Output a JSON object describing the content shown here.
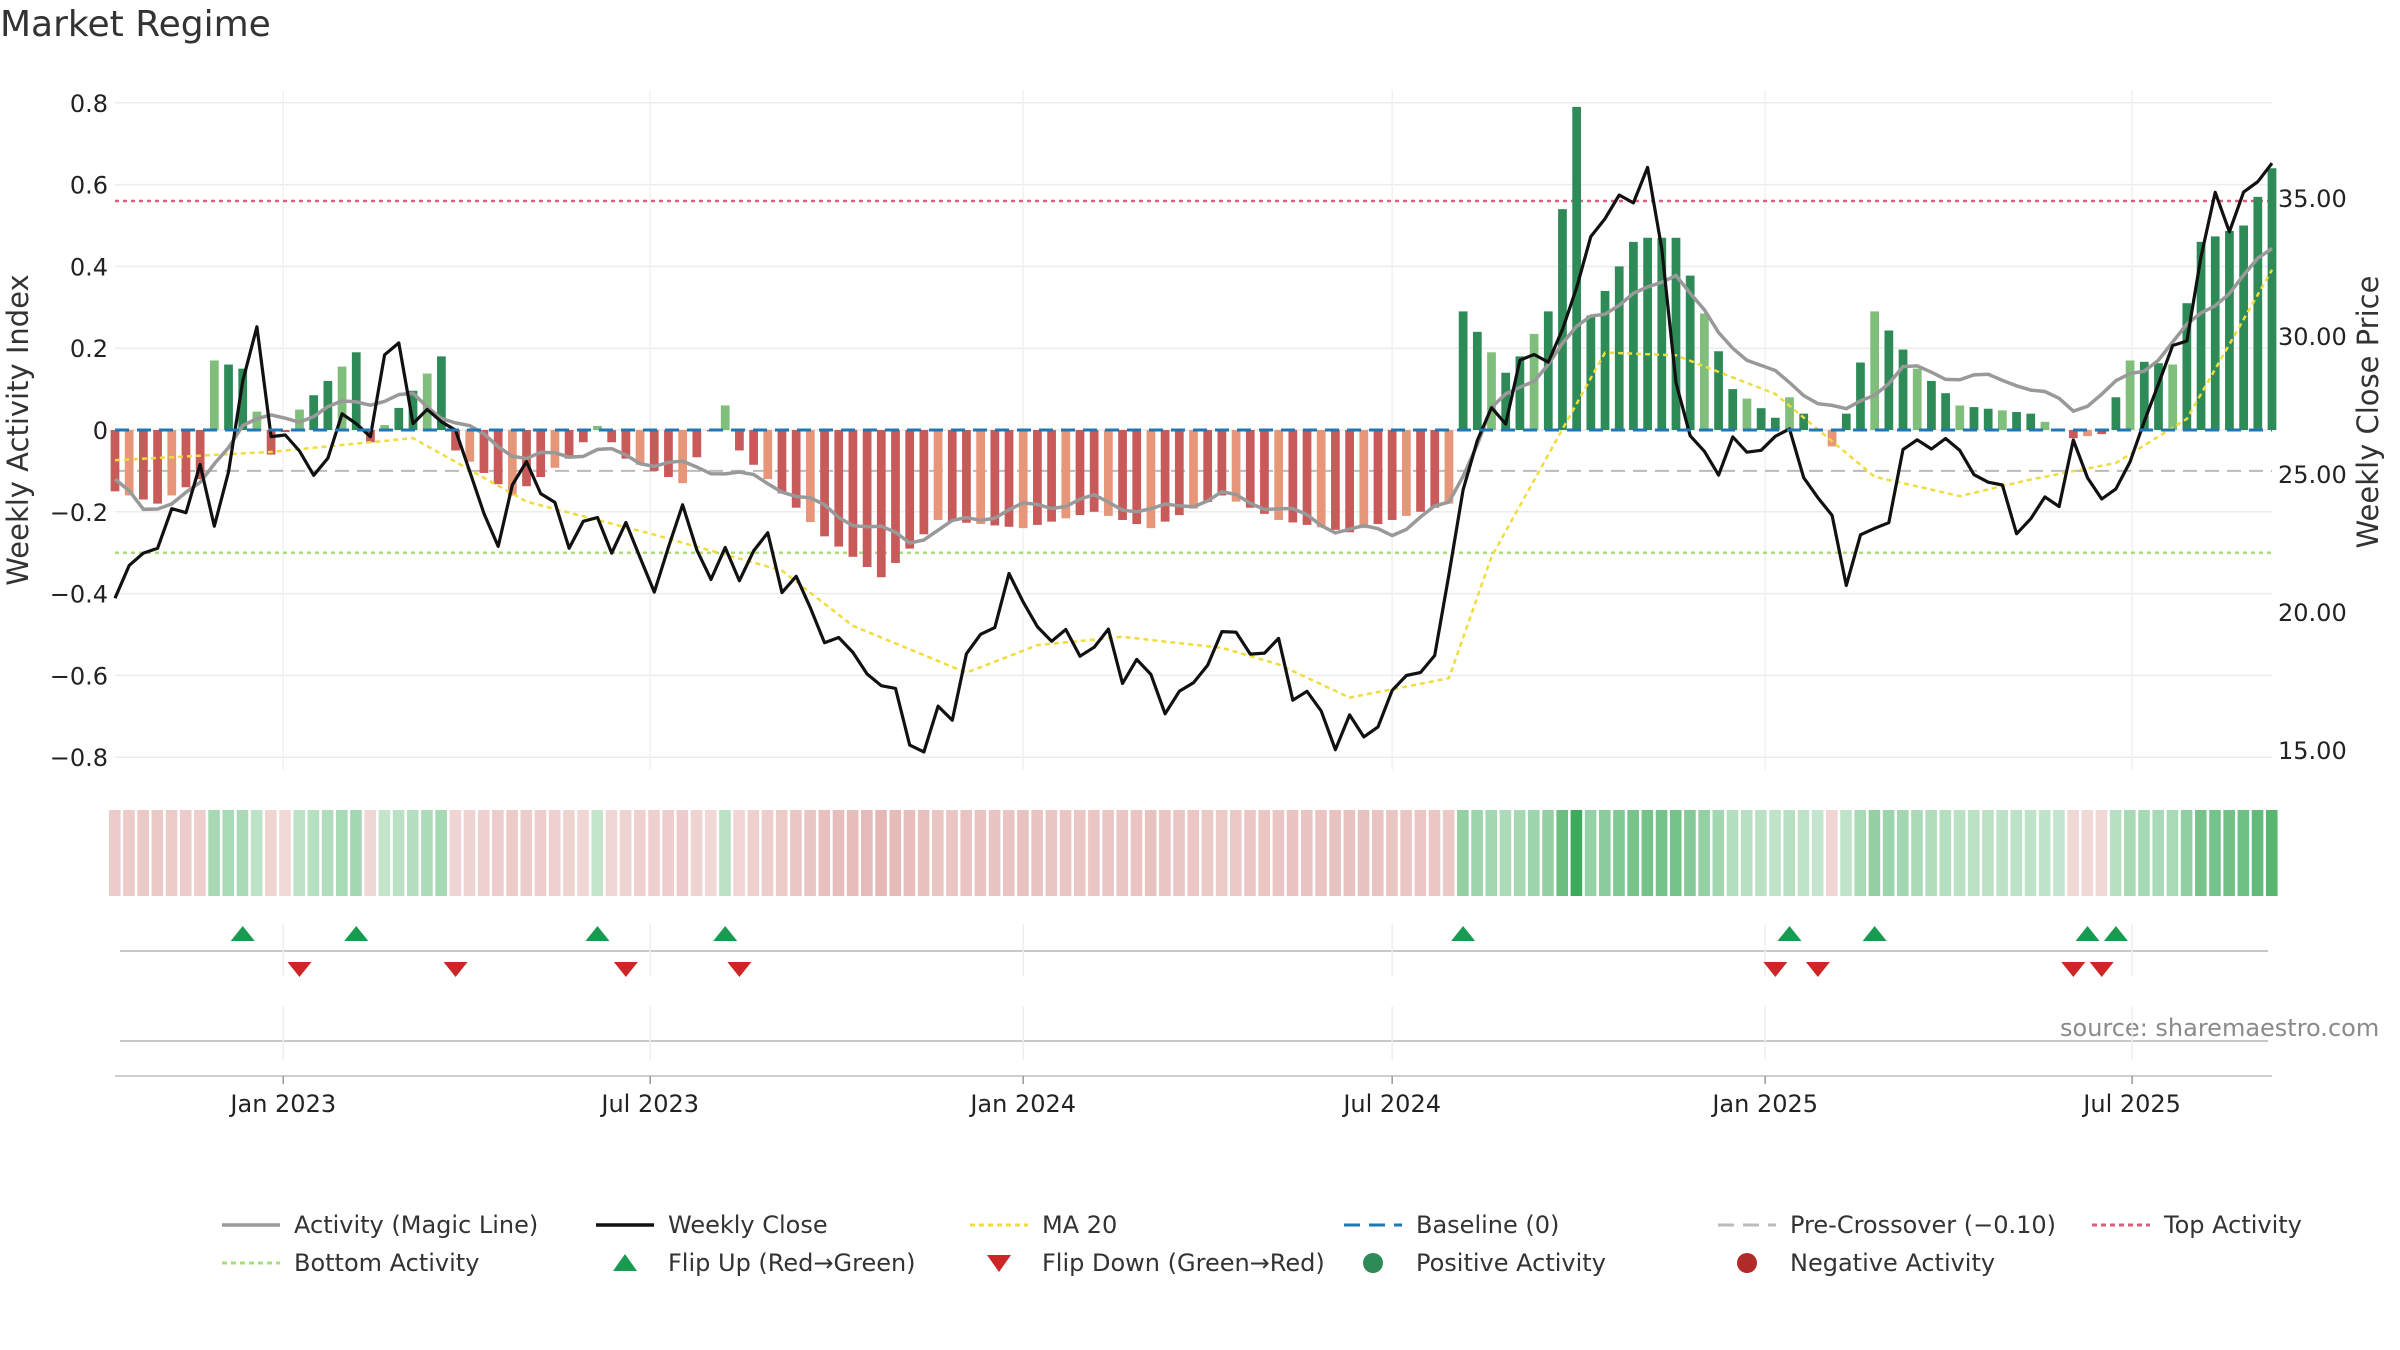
{
  "title": "Market Regime",
  "source": "source: sharemaestro.com",
  "colors": {
    "pos_strong": "#2e8b57",
    "pos_light": "#7fbf7b",
    "neg_strong": "#c85a5a",
    "neg_light": "#e8967a",
    "magic_line": "#999999",
    "weekly_close": "#111111",
    "ma20": "#f0dc3c",
    "baseline": "#1f77b4",
    "pre_crossover": "#bbbbbb",
    "top_activity": "#d9607a",
    "bottom_activity": "#a8dc78",
    "flip_up": "#1a9a50",
    "flip_down": "#cc2626"
  },
  "chart_data": {
    "type": "bar",
    "title": "Market Regime",
    "ylabel": "Weekly Activity Index",
    "y2label": "Weekly Close Price",
    "ylim": [
      -0.86,
      0.84
    ],
    "y2lim": [
      13.8,
      38.2
    ],
    "yticks": [
      "0.8",
      "0.6",
      "0.4",
      "0.2",
      "0",
      "−0.2",
      "−0.4",
      "−0.6",
      "−0.8"
    ],
    "yticks_values": [
      0.8,
      0.6,
      0.4,
      0.2,
      0,
      -0.2,
      -0.4,
      -0.6,
      -0.8
    ],
    "y2ticks": [
      "35.00",
      "30.00",
      "25.00",
      "20.00",
      "15.00"
    ],
    "y2ticks_values": [
      35,
      30,
      25,
      20,
      15
    ],
    "x_start": "2022-10-10",
    "x_end": "2025-09-08",
    "xticks": [
      "Jan 2023",
      "Jul 2023",
      "Jan 2024",
      "Jul 2024",
      "Jan 2025",
      "Jul 2025"
    ],
    "xticks_dates": [
      "2023-01-01",
      "2023-07-01",
      "2024-01-01",
      "2024-07-01",
      "2025-01-01",
      "2025-07-01"
    ],
    "grid": true,
    "legend_position": "bottom",
    "top_activity": 0.56,
    "bottom_activity": -0.3,
    "pre_crossover": -0.1,
    "baseline": 0,
    "activity_anchors": [
      [
        "2022-10-10",
        -0.15
      ],
      [
        "2022-10-31",
        -0.18
      ],
      [
        "2022-11-21",
        -0.12
      ],
      [
        "2022-11-28",
        0.17
      ],
      [
        "2022-12-12",
        0.15
      ],
      [
        "2022-12-26",
        -0.06
      ],
      [
        "2023-01-09",
        0.05
      ],
      [
        "2023-02-06",
        0.19
      ],
      [
        "2023-02-13",
        -0.03
      ],
      [
        "2023-03-20",
        0.18
      ],
      [
        "2023-03-27",
        -0.05
      ],
      [
        "2023-04-24",
        -0.16
      ],
      [
        "2023-05-22",
        -0.07
      ],
      [
        "2023-06-05",
        0.01
      ],
      [
        "2023-06-19",
        -0.07
      ],
      [
        "2023-07-17",
        -0.13
      ],
      [
        "2023-08-07",
        0.06
      ],
      [
        "2023-08-14",
        -0.05
      ],
      [
        "2023-09-25",
        -0.26
      ],
      [
        "2023-10-23",
        -0.36
      ],
      [
        "2023-11-20",
        -0.22
      ],
      [
        "2024-01-01",
        -0.24
      ],
      [
        "2024-02-05",
        -0.2
      ],
      [
        "2024-03-04",
        -0.24
      ],
      [
        "2024-04-08",
        -0.16
      ],
      [
        "2024-05-06",
        -0.22
      ],
      [
        "2024-06-10",
        -0.25
      ],
      [
        "2024-07-29",
        -0.18
      ],
      [
        "2024-08-05",
        0.29
      ],
      [
        "2024-08-26",
        0.14
      ],
      [
        "2024-09-02",
        0.18
      ],
      [
        "2024-09-16",
        0.29
      ],
      [
        "2024-09-30",
        0.79
      ],
      [
        "2024-10-07",
        0.28
      ],
      [
        "2024-10-28",
        0.46
      ],
      [
        "2024-11-04",
        0.47
      ],
      [
        "2024-11-18",
        0.47
      ],
      [
        "2024-12-16",
        0.1
      ],
      [
        "2025-01-06",
        0.03
      ],
      [
        "2025-01-13",
        0.08
      ],
      [
        "2025-02-03",
        -0.04
      ],
      [
        "2025-02-10",
        0.04
      ],
      [
        "2025-02-24",
        0.29
      ],
      [
        "2025-03-17",
        0.15
      ],
      [
        "2025-04-07",
        0.06
      ],
      [
        "2025-05-12",
        0.04
      ],
      [
        "2025-06-02",
        -0.02
      ],
      [
        "2025-06-16",
        -0.01
      ],
      [
        "2025-06-30",
        0.17
      ],
      [
        "2025-07-21",
        0.16
      ],
      [
        "2025-08-04",
        0.46
      ],
      [
        "2025-08-25",
        0.5
      ],
      [
        "2025-09-08",
        0.64
      ]
    ],
    "magic_anchors": [
      [
        "2022-10-10",
        -0.12
      ],
      [
        "2022-10-24",
        -0.2
      ],
      [
        "2022-11-21",
        -0.14
      ],
      [
        "2022-12-12",
        0.02
      ],
      [
        "2023-01-09",
        0.03
      ],
      [
        "2023-02-06",
        0.07
      ],
      [
        "2023-03-06",
        0.08
      ],
      [
        "2023-04-03",
        0.0
      ],
      [
        "2023-05-01",
        -0.07
      ],
      [
        "2023-06-05",
        -0.05
      ],
      [
        "2023-07-03",
        -0.08
      ],
      [
        "2023-08-07",
        -0.1
      ],
      [
        "2023-09-04",
        -0.14
      ],
      [
        "2023-10-02",
        -0.21
      ],
      [
        "2023-11-06",
        -0.27
      ],
      [
        "2023-12-04",
        -0.22
      ],
      [
        "2024-01-01",
        -0.19
      ],
      [
        "2024-02-05",
        -0.17
      ],
      [
        "2024-03-04",
        -0.2
      ],
      [
        "2024-04-08",
        -0.16
      ],
      [
        "2024-05-06",
        -0.19
      ],
      [
        "2024-06-03",
        -0.24
      ],
      [
        "2024-07-01",
        -0.25
      ],
      [
        "2024-07-29",
        -0.18
      ],
      [
        "2024-08-19",
        0.05
      ],
      [
        "2024-09-09",
        0.13
      ],
      [
        "2024-10-07",
        0.28
      ],
      [
        "2024-11-04",
        0.34
      ],
      [
        "2024-11-18",
        0.39
      ],
      [
        "2024-12-09",
        0.23
      ],
      [
        "2025-01-13",
        0.11
      ],
      [
        "2025-02-10",
        0.04
      ],
      [
        "2025-03-10",
        0.15
      ],
      [
        "2025-04-07",
        0.13
      ],
      [
        "2025-05-05",
        0.12
      ],
      [
        "2025-06-02",
        0.05
      ],
      [
        "2025-07-07",
        0.15
      ],
      [
        "2025-08-04",
        0.28
      ],
      [
        "2025-09-08",
        0.44
      ]
    ],
    "close_anchors": [
      [
        "2022-10-10",
        20.5
      ],
      [
        "2022-10-24",
        22.3
      ],
      [
        "2022-11-07",
        23.0
      ],
      [
        "2022-11-21",
        25.4
      ],
      [
        "2022-11-28",
        22.4
      ],
      [
        "2022-12-05",
        25.9
      ],
      [
        "2022-12-19",
        30.1
      ],
      [
        "2022-12-26",
        26.8
      ],
      [
        "2023-01-16",
        25.1
      ],
      [
        "2023-02-06",
        27.3
      ],
      [
        "2023-02-13",
        26.5
      ],
      [
        "2023-02-27",
        30.6
      ],
      [
        "2023-03-06",
        26.5
      ],
      [
        "2023-03-20",
        27.5
      ],
      [
        "2023-04-17",
        22.5
      ],
      [
        "2023-05-01",
        25.8
      ],
      [
        "2023-05-15",
        23.2
      ],
      [
        "2023-06-19",
        22.8
      ],
      [
        "2023-07-03",
        21.0
      ],
      [
        "2023-07-17",
        23.6
      ],
      [
        "2023-07-31",
        21.4
      ],
      [
        "2023-08-28",
        22.3
      ],
      [
        "2023-09-25",
        19.3
      ],
      [
        "2023-10-23",
        17.5
      ],
      [
        "2023-11-13",
        14.9
      ],
      [
        "2023-12-04",
        18.0
      ],
      [
        "2023-12-25",
        21.0
      ],
      [
        "2024-01-15",
        19.0
      ],
      [
        "2024-02-12",
        18.7
      ],
      [
        "2024-03-18",
        16.6
      ],
      [
        "2024-04-08",
        19.2
      ],
      [
        "2024-05-06",
        18.4
      ],
      [
        "2024-05-27",
        16.0
      ],
      [
        "2024-06-17",
        15.5
      ],
      [
        "2024-07-08",
        17.6
      ],
      [
        "2024-07-22",
        18.5
      ],
      [
        "2024-07-29",
        20.8
      ],
      [
        "2024-08-05",
        25.1
      ],
      [
        "2024-08-19",
        26.9
      ],
      [
        "2024-09-09",
        29.3
      ],
      [
        "2024-09-23",
        29.8
      ],
      [
        "2024-10-07",
        33.8
      ],
      [
        "2024-10-21",
        34.7
      ],
      [
        "2024-11-04",
        36.0
      ],
      [
        "2024-11-25",
        25.8
      ],
      [
        "2024-12-09",
        25.6
      ],
      [
        "2025-01-13",
        26.4
      ],
      [
        "2025-02-10",
        21.8
      ],
      [
        "2025-02-24",
        22.8
      ],
      [
        "2025-03-17",
        26.4
      ],
      [
        "2025-04-07",
        25.8
      ],
      [
        "2025-05-12",
        23.0
      ],
      [
        "2025-06-02",
        25.5
      ],
      [
        "2025-06-23",
        24.0
      ],
      [
        "2025-07-07",
        27.1
      ],
      [
        "2025-07-28",
        30.4
      ],
      [
        "2025-08-11",
        34.8
      ],
      [
        "2025-08-25",
        34.5
      ],
      [
        "2025-09-08",
        36.8
      ]
    ],
    "ma20_anchors": [
      [
        "2022-10-10",
        25.5
      ],
      [
        "2022-12-26",
        25.8
      ],
      [
        "2023-03-06",
        26.3
      ],
      [
        "2023-05-01",
        24.0
      ],
      [
        "2023-07-03",
        22.8
      ],
      [
        "2023-09-04",
        21.5
      ],
      [
        "2023-10-09",
        19.5
      ],
      [
        "2023-12-04",
        17.8
      ],
      [
        "2024-01-08",
        18.8
      ],
      [
        "2024-02-19",
        19.1
      ],
      [
        "2024-04-08",
        18.7
      ],
      [
        "2024-05-06",
        18.1
      ],
      [
        "2024-06-10",
        16.9
      ],
      [
        "2024-07-29",
        17.6
      ],
      [
        "2024-08-19",
        22.0
      ],
      [
        "2024-10-14",
        29.4
      ],
      [
        "2024-11-18",
        29.3
      ],
      [
        "2025-01-06",
        27.9
      ],
      [
        "2025-02-24",
        24.9
      ],
      [
        "2025-04-07",
        24.2
      ],
      [
        "2025-05-12",
        24.8
      ],
      [
        "2025-06-23",
        25.4
      ],
      [
        "2025-07-28",
        27.0
      ],
      [
        "2025-09-08",
        32.4
      ]
    ],
    "flip_up_dates": [
      "2022-12-12",
      "2023-02-06",
      "2023-06-05",
      "2023-08-07",
      "2024-08-05",
      "2025-01-13",
      "2025-02-24",
      "2025-06-09",
      "2025-06-23"
    ],
    "flip_down_dates": [
      "2023-01-09",
      "2023-03-27",
      "2023-06-19",
      "2023-08-14",
      "2025-01-06",
      "2025-01-27",
      "2025-06-02",
      "2025-06-16"
    ],
    "legend": [
      {
        "label": "Activity (Magic Line)",
        "symbol": "line",
        "color": "#999999"
      },
      {
        "label": "Weekly Close",
        "symbol": "line",
        "color": "#111111"
      },
      {
        "label": "MA 20",
        "symbol": "dotted",
        "color": "#f0dc3c"
      },
      {
        "label": "Baseline (0)",
        "symbol": "dashed",
        "color": "#1f77b4"
      },
      {
        "label": "Pre-Crossover (−0.10)",
        "symbol": "dashed",
        "color": "#bbbbbb"
      },
      {
        "label": "Top Activity",
        "symbol": "dotted",
        "color": "#d9607a"
      },
      {
        "label": "Bottom Activity",
        "symbol": "dotted",
        "color": "#a8dc78"
      },
      {
        "label": "Flip Up (Red→Green)",
        "symbol": "triangle-up",
        "color": "#1a9a50"
      },
      {
        "label": "Flip Down (Green→Red)",
        "symbol": "triangle-down",
        "color": "#cc2626"
      },
      {
        "label": "Positive Activity",
        "symbol": "circle",
        "color": "#2e8b57"
      },
      {
        "label": "Negative Activity",
        "symbol": "circle",
        "color": "#b22a2a"
      }
    ]
  }
}
